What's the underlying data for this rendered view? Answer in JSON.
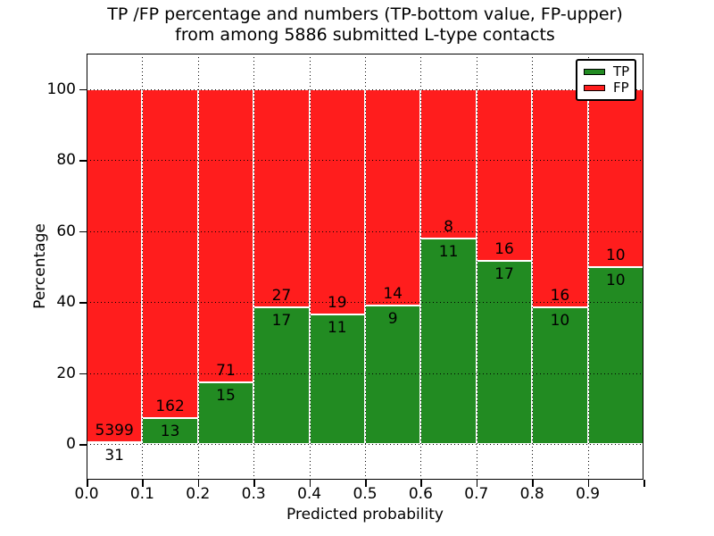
{
  "chart_data": {
    "type": "bar",
    "stacked": true,
    "normalized": "percent",
    "title_line1": "TP /FP percentage and numbers (TP-bottom value, FP-upper)",
    "title_line2": "from among 5886 submitted L-type contacts",
    "xlabel": "Predicted probability",
    "ylabel": "Percentage",
    "xlim": [
      0.0,
      1.0
    ],
    "ylim": [
      -10,
      110
    ],
    "bin_width": 0.1,
    "categories": [
      "0.0-0.1",
      "0.1-0.2",
      "0.2-0.3",
      "0.3-0.4",
      "0.4-0.5",
      "0.5-0.6",
      "0.6-0.7",
      "0.7-0.8",
      "0.8-0.9",
      "0.9-1.0"
    ],
    "xticks": [
      "0.0",
      "0.1",
      "0.2",
      "0.3",
      "0.4",
      "0.5",
      "0.6",
      "0.7",
      "0.8",
      "0.9"
    ],
    "yticks": [
      0,
      20,
      40,
      60,
      80,
      100
    ],
    "grid": "dotted",
    "legend_position": "upper right",
    "total_contacts": 5886,
    "series": [
      {
        "name": "TP",
        "color": "#228b22",
        "counts": [
          31,
          13,
          15,
          17,
          11,
          9,
          11,
          17,
          10,
          10
        ]
      },
      {
        "name": "FP",
        "color": "#ff1d1d",
        "counts": [
          5399,
          162,
          71,
          27,
          19,
          14,
          8,
          16,
          16,
          10
        ]
      }
    ],
    "annotation_note": "per-bar numbers shown: TP count below segment boundary, FP count above"
  },
  "colors": {
    "tp_green": "#228b22",
    "fp_red": "#ff1d1d",
    "grid": "#000000",
    "background": "#ffffff",
    "text": "#000000"
  }
}
